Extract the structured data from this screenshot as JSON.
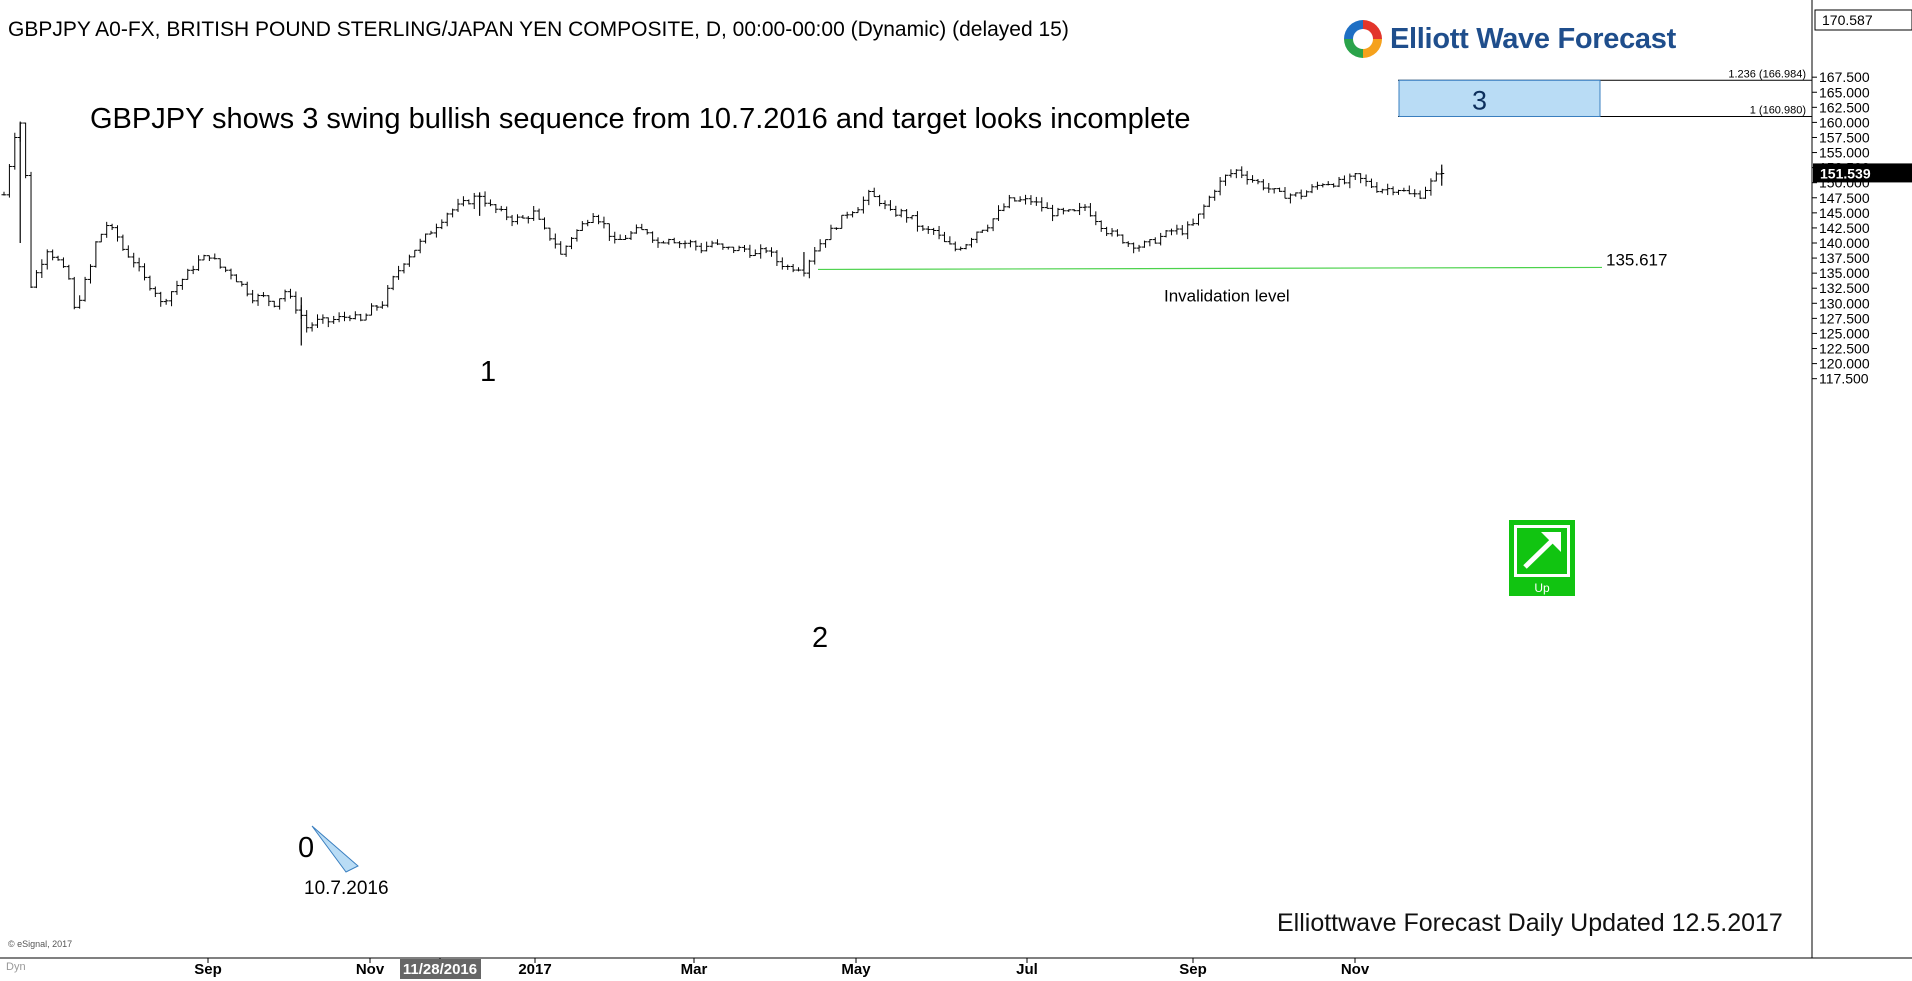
{
  "header": {
    "title": "GBPJPY A0-FX, BRITISH POUND STERLING/JAPAN YEN COMPOSITE, D, 00:00-00:00 (Dynamic) (delayed 15)"
  },
  "brand": {
    "logo_text": "Elliott Wave Forecast",
    "footer_text": "Elliottwave Forecast Daily Updated 12.5.2017",
    "copyright": "© eSignal, 2017",
    "corner_label": "Dyn"
  },
  "colors": {
    "price_bar": "#000000",
    "target_box": "#b9dcf5",
    "target_border": "#3a7fc0",
    "invalidation_line": "#4cd24c",
    "up_icon": "#11c411",
    "current_price_bg": "#000000"
  },
  "chart_data": {
    "type": "ohlc",
    "title": "GBPJPY shows 3 swing bullish sequence from 10.7.2016 and target looks incomplete",
    "y_axis": {
      "side": "right",
      "ylim": [
        115.5,
        171.5
      ],
      "ticks": [
        "117.500",
        "120.000",
        "122.500",
        "125.000",
        "127.500",
        "130.000",
        "132.500",
        "135.000",
        "137.500",
        "140.000",
        "142.500",
        "145.000",
        "147.500",
        "150.000",
        "152.500",
        "155.000",
        "157.500",
        "160.000",
        "162.500",
        "165.000",
        "167.500"
      ],
      "top_value": "170.587",
      "current_price": "151.539",
      "current_value": 151.539
    },
    "x_axis": {
      "labels": [
        "Sep",
        "Nov",
        "11/28/2016",
        "2017",
        "Mar",
        "May",
        "Jul",
        "Sep",
        "Nov"
      ],
      "highlighted_label": "11/28/2016"
    },
    "waves": [
      {
        "label": "0",
        "date": "10.7.2016",
        "value": 123.0
      },
      {
        "label": "1",
        "value": 148.4
      },
      {
        "label": "2",
        "value": 135.617
      },
      {
        "label": "3",
        "target": true
      }
    ],
    "target_zone": {
      "label": "3",
      "upper_label": "1.236 (166.984)",
      "upper": 166.984,
      "lower_label": "1 (160.980)",
      "lower": 160.98
    },
    "invalidation": {
      "value": 135.617,
      "value_label": "135.617",
      "label": "Invalidation level"
    },
    "price_path": [
      [
        0,
        148
      ],
      [
        2,
        158
      ],
      [
        3,
        160
      ],
      [
        4,
        151
      ],
      [
        5,
        133
      ],
      [
        8,
        139
      ],
      [
        10,
        137
      ],
      [
        12,
        134
      ],
      [
        13,
        129
      ],
      [
        14,
        131
      ],
      [
        16,
        136
      ],
      [
        17,
        140
      ],
      [
        19,
        143
      ],
      [
        21,
        141
      ],
      [
        22,
        139
      ],
      [
        24,
        137
      ],
      [
        26,
        134
      ],
      [
        28,
        132
      ],
      [
        29,
        130
      ],
      [
        31,
        132
      ],
      [
        33,
        134
      ],
      [
        36,
        137
      ],
      [
        38,
        138
      ],
      [
        40,
        136
      ],
      [
        42,
        135
      ],
      [
        44,
        133
      ],
      [
        46,
        131
      ],
      [
        48,
        131
      ],
      [
        50,
        130
      ],
      [
        52,
        132
      ],
      [
        55,
        128
      ],
      [
        56,
        126
      ],
      [
        58,
        127
      ],
      [
        60,
        127
      ],
      [
        62,
        127.5
      ],
      [
        64,
        128
      ],
      [
        66,
        127
      ],
      [
        68,
        129
      ],
      [
        70,
        130
      ],
      [
        72,
        134
      ],
      [
        74,
        137
      ],
      [
        76,
        139
      ],
      [
        78,
        141
      ],
      [
        80,
        143
      ],
      [
        82,
        145
      ],
      [
        84,
        146
      ],
      [
        86,
        147
      ],
      [
        88,
        148
      ],
      [
        90,
        146
      ],
      [
        92,
        145
      ],
      [
        94,
        144
      ],
      [
        96,
        144
      ],
      [
        98,
        145
      ],
      [
        100,
        142
      ],
      [
        102,
        140
      ],
      [
        103,
        138
      ],
      [
        105,
        141
      ],
      [
        107,
        143
      ],
      [
        109,
        145
      ],
      [
        111,
        143
      ],
      [
        113,
        140
      ],
      [
        115,
        141
      ],
      [
        117,
        142
      ],
      [
        119,
        142
      ],
      [
        121,
        140
      ],
      [
        123,
        141
      ],
      [
        125,
        140
      ],
      [
        127,
        140
      ],
      [
        129,
        139
      ],
      [
        131,
        140
      ],
      [
        133,
        139
      ],
      [
        135,
        139
      ],
      [
        137,
        139
      ],
      [
        139,
        138
      ],
      [
        141,
        139
      ],
      [
        143,
        137
      ],
      [
        145,
        136
      ],
      [
        147,
        136
      ],
      [
        148,
        135.6
      ],
      [
        150,
        139
      ],
      [
        152,
        141
      ],
      [
        154,
        143
      ],
      [
        156,
        145
      ],
      [
        158,
        146
      ],
      [
        160,
        148
      ],
      [
        162,
        147
      ],
      [
        164,
        145
      ],
      [
        166,
        145
      ],
      [
        168,
        144
      ],
      [
        170,
        142
      ],
      [
        172,
        142
      ],
      [
        174,
        140
      ],
      [
        176,
        139
      ],
      [
        178,
        140
      ],
      [
        180,
        142
      ],
      [
        182,
        143
      ],
      [
        184,
        145
      ],
      [
        186,
        147
      ],
      [
        188,
        147
      ],
      [
        190,
        147
      ],
      [
        192,
        146
      ],
      [
        194,
        145
      ],
      [
        196,
        145
      ],
      [
        198,
        145
      ],
      [
        200,
        146
      ],
      [
        202,
        144
      ],
      [
        204,
        142
      ],
      [
        206,
        141
      ],
      [
        208,
        140
      ],
      [
        210,
        139.5
      ],
      [
        212,
        140
      ],
      [
        214,
        141
      ],
      [
        216,
        142
      ],
      [
        218,
        142
      ],
      [
        220,
        143
      ],
      [
        222,
        146
      ],
      [
        224,
        149
      ],
      [
        226,
        151
      ],
      [
        228,
        152
      ],
      [
        230,
        151
      ],
      [
        232,
        150
      ],
      [
        234,
        149
      ],
      [
        236,
        148
      ],
      [
        238,
        148
      ],
      [
        240,
        148
      ],
      [
        242,
        149
      ],
      [
        244,
        150
      ],
      [
        246,
        150
      ],
      [
        248,
        150
      ],
      [
        250,
        151
      ],
      [
        252,
        150
      ],
      [
        254,
        149
      ],
      [
        256,
        149
      ],
      [
        258,
        149
      ],
      [
        260,
        148
      ],
      [
        262,
        148
      ],
      [
        264,
        150
      ],
      [
        266,
        152
      ],
      [
        267,
        151.5
      ]
    ]
  }
}
